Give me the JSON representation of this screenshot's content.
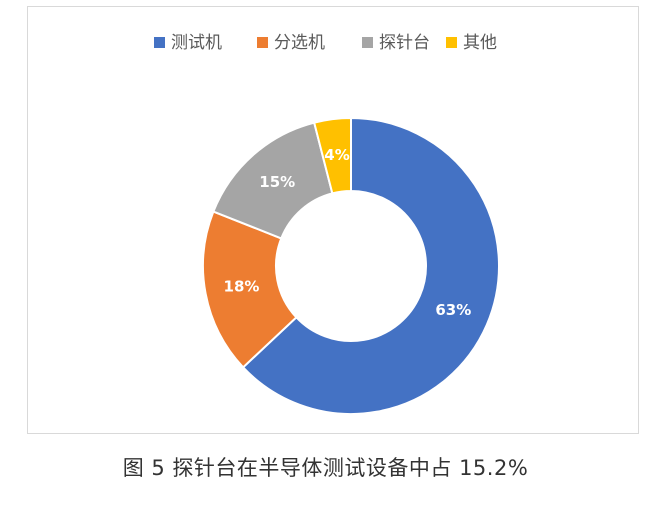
{
  "chart_data": {
    "type": "pie",
    "subtype": "donut",
    "legend_position": "top",
    "categories": [
      "测试机",
      "分选机",
      "探针台",
      "其他"
    ],
    "values": [
      63,
      18,
      15,
      4
    ],
    "labels": [
      "63%",
      "18%",
      "15%",
      "4%"
    ],
    "colors": [
      "#4472c4",
      "#ed7d31",
      "#a5a5a5",
      "#ffc000"
    ]
  },
  "caption": "图 5  探针台在半导体测试设备中占 15.2%"
}
